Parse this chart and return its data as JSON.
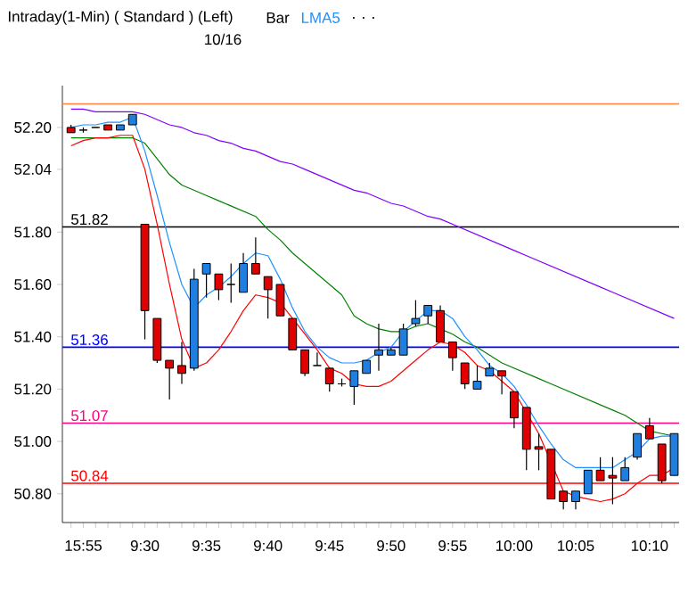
{
  "chart_data": {
    "type": "candlestick",
    "title": "Intraday(1-Min) ( Standard )  (Left)",
    "subtitle": "10/16",
    "annotations": [
      "Bar",
      ". . ."
    ],
    "legend": "top",
    "categories": [
      null,
      "15:55",
      null,
      null,
      null,
      null,
      "9:30",
      null,
      null,
      null,
      null,
      "9:35",
      null,
      null,
      null,
      null,
      "9:40",
      null,
      null,
      null,
      null,
      "9:45",
      null,
      null,
      null,
      null,
      "9:50",
      null,
      null,
      null,
      null,
      "9:55",
      null,
      null,
      null,
      null,
      "10:00",
      null,
      null,
      null,
      null,
      "10:05",
      null,
      null,
      null,
      null,
      null,
      "10:10",
      null,
      null
    ],
    "ohlc": [
      [
        52.2,
        52.21,
        52.18,
        52.18
      ],
      [
        52.19,
        52.2,
        52.18,
        52.19
      ],
      [
        52.2,
        52.2,
        52.2,
        52.2
      ],
      [
        52.21,
        52.21,
        52.19,
        52.19
      ],
      [
        52.19,
        52.21,
        52.19,
        52.21
      ],
      [
        52.21,
        52.25,
        52.21,
        52.25
      ],
      [
        51.83,
        51.83,
        51.39,
        51.5
      ],
      [
        51.47,
        51.47,
        51.3,
        51.31
      ],
      [
        51.31,
        51.31,
        51.16,
        51.28
      ],
      [
        51.29,
        51.38,
        51.22,
        51.26
      ],
      [
        51.28,
        51.66,
        51.27,
        51.62
      ],
      [
        51.64,
        51.68,
        51.55,
        51.68
      ],
      [
        51.64,
        51.64,
        51.54,
        51.58
      ],
      [
        51.6,
        51.68,
        51.53,
        51.6
      ],
      [
        51.57,
        51.72,
        51.57,
        51.68
      ],
      [
        51.68,
        51.78,
        51.64,
        51.64
      ],
      [
        51.63,
        51.63,
        51.47,
        51.58
      ],
      [
        51.6,
        51.6,
        51.48,
        51.48
      ],
      [
        51.47,
        51.47,
        51.35,
        51.35
      ],
      [
        51.35,
        51.35,
        51.25,
        51.26
      ],
      [
        51.29,
        51.34,
        51.29,
        51.29
      ],
      [
        51.28,
        51.28,
        51.19,
        51.22
      ],
      [
        51.22,
        51.24,
        51.21,
        51.22
      ],
      [
        51.21,
        51.27,
        51.14,
        51.27
      ],
      [
        51.26,
        51.31,
        51.26,
        51.31
      ],
      [
        51.33,
        51.45,
        51.27,
        51.35
      ],
      [
        51.33,
        51.36,
        51.33,
        51.35
      ],
      [
        51.33,
        51.45,
        51.33,
        51.43
      ],
      [
        51.45,
        51.54,
        51.44,
        51.47
      ],
      [
        51.48,
        51.52,
        51.45,
        51.52
      ],
      [
        51.5,
        51.52,
        51.38,
        51.38
      ],
      [
        51.38,
        51.38,
        51.27,
        51.32
      ],
      [
        51.3,
        51.3,
        51.2,
        51.22
      ],
      [
        51.2,
        51.29,
        51.2,
        51.23
      ],
      [
        51.25,
        51.3,
        51.25,
        51.28
      ],
      [
        51.27,
        51.27,
        51.18,
        51.25
      ],
      [
        51.19,
        51.19,
        51.05,
        51.09
      ],
      [
        51.13,
        51.13,
        50.89,
        50.97
      ],
      [
        50.98,
        51.03,
        50.89,
        50.97
      ],
      [
        50.97,
        50.97,
        50.78,
        50.78
      ],
      [
        50.81,
        50.81,
        50.74,
        50.77
      ],
      [
        50.77,
        50.81,
        50.74,
        50.81
      ],
      [
        50.8,
        50.89,
        50.8,
        50.89
      ],
      [
        50.89,
        50.94,
        50.85,
        50.85
      ],
      [
        50.87,
        50.94,
        50.76,
        50.86
      ],
      [
        50.85,
        50.94,
        50.85,
        50.9
      ],
      [
        50.94,
        51.03,
        50.93,
        51.03
      ],
      [
        51.06,
        51.09,
        51.01,
        51.01
      ],
      [
        50.99,
        50.99,
        50.84,
        50.85
      ],
      [
        50.87,
        51.03,
        50.87,
        51.03
      ]
    ],
    "series": [
      {
        "type": "line",
        "color": "#8000ff",
        "values": [
          52.27,
          52.27,
          52.26,
          52.26,
          52.26,
          52.26,
          52.25,
          52.23,
          52.21,
          52.2,
          52.18,
          52.17,
          52.15,
          52.14,
          52.12,
          52.11,
          52.09,
          52.07,
          52.06,
          52.04,
          52.02,
          52.0,
          51.98,
          51.96,
          51.95,
          51.93,
          51.91,
          51.9,
          51.88,
          51.86,
          51.85,
          51.83,
          51.81,
          51.79,
          51.77,
          51.75,
          51.73,
          51.71,
          51.69,
          51.67,
          51.65,
          51.63,
          51.61,
          51.59,
          51.57,
          51.55,
          51.53,
          51.51,
          51.49,
          51.47
        ]
      },
      {
        "type": "line",
        "color": "#008000",
        "values": [
          52.16,
          52.16,
          52.16,
          52.16,
          52.16,
          52.16,
          52.14,
          52.08,
          52.02,
          51.98,
          51.96,
          51.94,
          51.92,
          51.9,
          51.88,
          51.86,
          51.81,
          51.77,
          51.72,
          51.68,
          51.64,
          51.6,
          51.56,
          51.48,
          51.45,
          51.43,
          51.42,
          51.42,
          51.44,
          51.45,
          51.43,
          51.41,
          51.38,
          51.36,
          51.33,
          51.3,
          51.28,
          51.26,
          51.24,
          51.22,
          51.2,
          51.18,
          51.16,
          51.14,
          51.12,
          51.1,
          51.07,
          51.04,
          51.03,
          51.02
        ]
      },
      {
        "type": "line",
        "color": "#ff0000",
        "values": [
          52.13,
          52.15,
          52.16,
          52.16,
          52.17,
          52.17,
          52.04,
          51.83,
          51.6,
          51.39,
          51.28,
          51.3,
          51.35,
          51.42,
          51.5,
          51.56,
          51.55,
          51.53,
          51.47,
          51.41,
          51.35,
          51.28,
          51.26,
          51.22,
          51.21,
          51.21,
          51.23,
          51.27,
          51.31,
          51.35,
          51.38,
          51.37,
          51.34,
          51.29,
          51.27,
          51.23,
          51.19,
          51.11,
          51.03,
          50.92,
          50.81,
          50.79,
          50.78,
          50.77,
          50.78,
          50.8,
          50.84,
          50.87,
          50.87,
          50.9
        ]
      },
      {
        "type": "line",
        "name": "LMA5",
        "color": "#1e90ff",
        "values": [
          52.2,
          52.21,
          52.21,
          52.22,
          52.22,
          52.24,
          52.11,
          51.94,
          51.76,
          51.6,
          51.51,
          51.56,
          51.59,
          51.63,
          51.68,
          51.72,
          51.71,
          51.62,
          51.51,
          51.42,
          51.36,
          51.32,
          51.3,
          51.3,
          51.31,
          51.34,
          51.36,
          51.42,
          51.46,
          51.5,
          51.5,
          51.47,
          51.4,
          51.35,
          51.29,
          51.26,
          51.21,
          51.14,
          51.06,
          50.99,
          50.93,
          50.9,
          50.9,
          50.9,
          50.9,
          50.93,
          50.96,
          51.01,
          51.02,
          51.02
        ]
      }
    ],
    "ylim": [
      50.69,
      52.36
    ],
    "yticks": [
      {
        "value": 50.8,
        "label": "50.80"
      },
      {
        "value": 51.0,
        "label": "51.00"
      },
      {
        "value": 51.2,
        "label": "51.20"
      },
      {
        "value": 51.4,
        "label": "51.40"
      },
      {
        "value": 51.6,
        "label": "51.60"
      },
      {
        "value": 51.8,
        "label": "51.80"
      },
      52.04,
      {
        "value": 52.2,
        "label": "52.20"
      }
    ],
    "ref_lines": [
      {
        "axis": "y",
        "value": 52.29,
        "color": "#ff8040"
      },
      {
        "axis": "y",
        "value": 51.82,
        "label": "51.82",
        "color": "#000000"
      },
      {
        "axis": "y",
        "value": 51.36,
        "label": "51.36",
        "color": "#0000ff"
      },
      {
        "axis": "y",
        "value": 51.07,
        "label": "51.07",
        "color": "#ff0080"
      },
      {
        "axis": "y",
        "value": 50.84,
        "label": "50.84",
        "color": "#ff0000"
      }
    ]
  }
}
